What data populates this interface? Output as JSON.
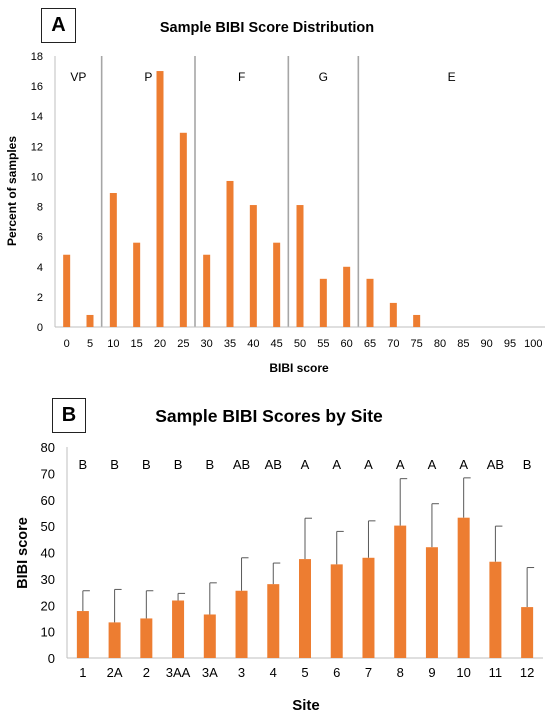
{
  "chart_data": [
    {
      "panel": "A",
      "type": "bar",
      "title": "Sample BIBI Score Distribution",
      "xlabel": "BIBI score",
      "ylabel": "Percent of samples",
      "ylim": [
        0,
        18
      ],
      "yticks": [
        0,
        2,
        4,
        6,
        8,
        10,
        12,
        14,
        16,
        18
      ],
      "categories": [
        "0",
        "5",
        "10",
        "15",
        "20",
        "25",
        "30",
        "35",
        "40",
        "45",
        "50",
        "55",
        "60",
        "65",
        "70",
        "75",
        "80",
        "85",
        "90",
        "95",
        "100"
      ],
      "values": [
        4.8,
        0.8,
        8.9,
        5.6,
        17.0,
        12.9,
        4.8,
        9.7,
        8.1,
        5.6,
        8.1,
        3.2,
        4.0,
        3.2,
        1.6,
        0.8,
        0,
        0,
        0,
        0,
        0
      ],
      "region_labels": [
        "VP",
        "P",
        "F",
        "G",
        "E"
      ],
      "region_boundaries": [
        7.5,
        27.5,
        47.5,
        62.5
      ],
      "bar_color": "#ed7d31",
      "divider_color": "#a6a6a6",
      "grid": false
    },
    {
      "panel": "B",
      "type": "bar",
      "title": "Sample BIBI Scores by Site",
      "xlabel": "Site",
      "ylabel": "BIBI score",
      "ylim": [
        0,
        80
      ],
      "yticks": [
        0,
        10,
        20,
        30,
        40,
        50,
        60,
        70,
        80
      ],
      "categories": [
        "1",
        "2A",
        "2",
        "3AA",
        "3A",
        "3",
        "4",
        "5",
        "6",
        "7",
        "8",
        "9",
        "10",
        "11",
        "12"
      ],
      "values": [
        17.8,
        13.5,
        15.0,
        21.8,
        16.5,
        25.5,
        28.0,
        37.5,
        35.5,
        38.0,
        50.2,
        42.0,
        53.2,
        36.5,
        19.3
      ],
      "error_upper": [
        25.5,
        26.0,
        25.5,
        24.5,
        28.5,
        38.0,
        36.0,
        53.0,
        48.0,
        52.0,
        68.0,
        58.5,
        68.3,
        50.0,
        34.3
      ],
      "group_letters": [
        "B",
        "B",
        "B",
        "B",
        "B",
        "AB",
        "AB",
        "A",
        "A",
        "A",
        "A",
        "A",
        "A",
        "AB",
        "B"
      ],
      "bar_color": "#ed7d31",
      "grid": false
    }
  ]
}
